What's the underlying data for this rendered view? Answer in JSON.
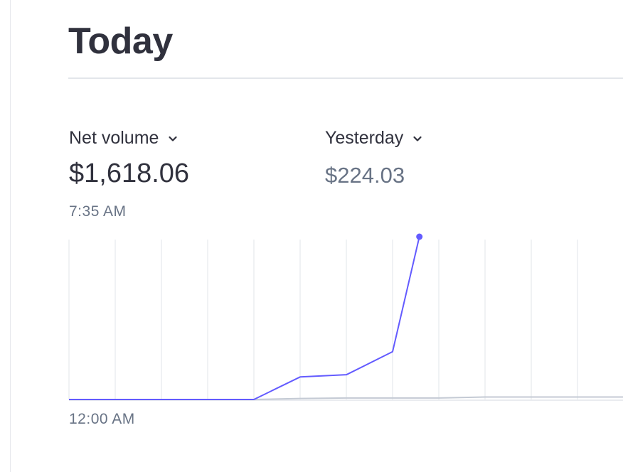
{
  "header": {
    "title": "Today"
  },
  "metrics": {
    "primary": {
      "label": "Net volume",
      "value": "$1,618.06",
      "time": "7:35 AM"
    },
    "comparison": {
      "label": "Yesterday",
      "value": "$224.03"
    }
  },
  "colors": {
    "today": "#635bff",
    "yesterday": "#c4cad4",
    "grid": "#ebeef1"
  },
  "chart_data": {
    "type": "line",
    "x_tick_labels": [
      "12:00 AM"
    ],
    "series": [
      {
        "name": "Today",
        "x": [
          0,
          1,
          2,
          3,
          4,
          5,
          6,
          7,
          7.58
        ],
        "values": [
          0,
          0,
          0,
          0,
          0,
          224,
          246,
          475,
          1618.06
        ]
      },
      {
        "name": "Yesterday",
        "x": [
          0,
          1,
          2,
          3,
          4,
          5,
          6,
          7,
          8,
          9,
          10,
          11,
          12
        ],
        "values": [
          0,
          0,
          0,
          0,
          0,
          10,
          15,
          15,
          15,
          25,
          25,
          25,
          25
        ]
      }
    ],
    "xlim": [
      0,
      12
    ],
    "ylim": [
      0,
      1618.06
    ],
    "grid": true
  }
}
